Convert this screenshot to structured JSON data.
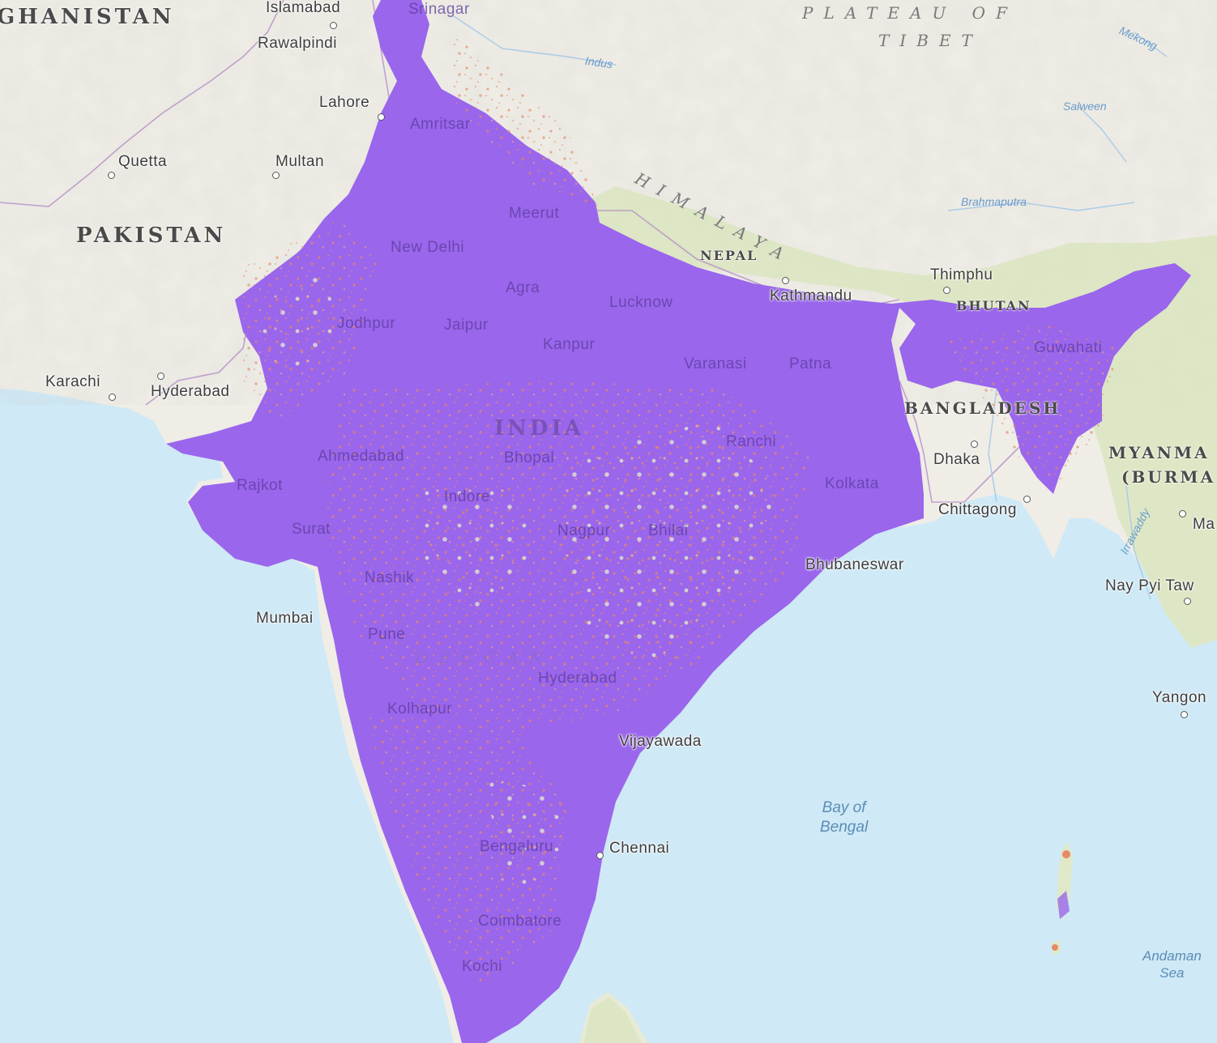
{
  "map": {
    "colors": {
      "ocean": "#cfe9f6",
      "land": "#efede6",
      "vegetation": "#dde7c6",
      "coverage_primary": "#9a66ec",
      "coverage_secondary": "#e58a68",
      "border": "#b48fc7"
    },
    "countries": [
      "GHANISTAN",
      "PAKISTAN",
      "INDIA",
      "NEPAL",
      "BHUTAN",
      "BANGLADESH",
      "MYANMA",
      "(BURMA"
    ],
    "regions": [
      "PLATEAU OF",
      "TIBET",
      "HIMALAYA",
      "DECCAN"
    ],
    "rivers": [
      "Indus",
      "Mekong",
      "Salween",
      "Brahmaputra",
      "Irrawaddy"
    ],
    "water_bodies": {
      "bay_of_bengal": [
        "Bay of",
        "Bengal"
      ],
      "andaman_sea": [
        "Andaman",
        "Sea"
      ]
    },
    "cities": {
      "islamabad": "Islamabad",
      "srinagar": "Srinagar",
      "rawalpindi": "Rawalpindi",
      "lahore": "Lahore",
      "amritsar": "Amritsar",
      "quetta": "Quetta",
      "multan": "Multan",
      "meerut": "Meerut",
      "new_delhi": "New Delhi",
      "agra": "Agra",
      "lucknow": "Lucknow",
      "kathmandu": "Kathmandu",
      "thimphu": "Thimphu",
      "jodhpur": "Jodhpur",
      "jaipur": "Jaipur",
      "kanpur": "Kanpur",
      "varanasi": "Varanasi",
      "patna": "Patna",
      "guwahati": "Guwahati",
      "karachi": "Karachi",
      "hyderabad_pk": "Hyderabad",
      "ahmedabad": "Ahmedabad",
      "bhopal": "Bhopal",
      "ranchi": "Ranchi",
      "dhaka": "Dhaka",
      "rajkot": "Rajkot",
      "indore": "Indore",
      "kolkata": "Kolkata",
      "chittagong": "Chittagong",
      "surat": "Surat",
      "nagpur": "Nagpur",
      "bhilai": "Bhilai",
      "bhubaneswar": "Bhubaneswar",
      "nashik": "Nashik",
      "mumbai": "Mumbai",
      "pune": "Pune",
      "hyderabad_in": "Hyderabad",
      "kolhapur": "Kolhapur",
      "vijayawada": "Vijayawada",
      "bengaluru": "Bengaluru",
      "chennai": "Chennai",
      "coimbatore": "Coimbatore",
      "kochi": "Kochi",
      "nay_pyi_taw": "Nay Pyi Taw",
      "yangon": "Yangon",
      "ma": "Ma"
    }
  }
}
